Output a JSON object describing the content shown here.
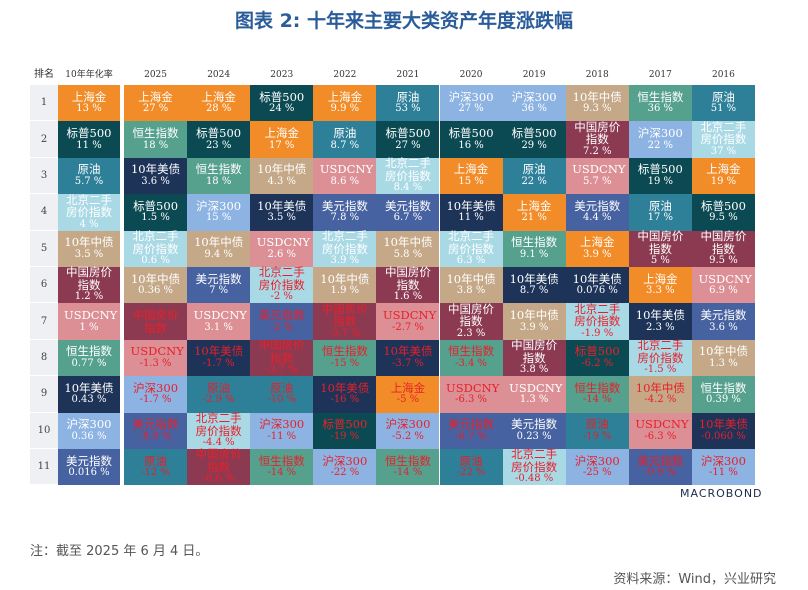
{
  "title": "图表 2:  十年来主要大类资产年度涨跌幅",
  "note": "注：截至 2025 年 6 月 4 日。",
  "source": "资料来源：Wind，兴业研究",
  "logo": "MACROBOND",
  "chart_data": {
    "type": "table",
    "rank_header": "排名",
    "ranks": [
      "1",
      "2",
      "3",
      "4",
      "5",
      "6",
      "7",
      "8",
      "9",
      "10",
      "11"
    ],
    "colors": {
      "上海金": "#f28c28",
      "标普500": "#0b4a52",
      "原油": "#2e7f98",
      "恒生指数": "#56a18d",
      "10年美债": "#1d3358",
      "沪深300": "#8db3e2",
      "10年中债": "#c4a887",
      "USDCNY": "#dc9096",
      "北京二手房价指数": "#aad9e6",
      "美元指数": "#4762a0",
      "中国房价指数": "#8b3a52"
    },
    "negative_text_color": "#e8202a",
    "columns": [
      {
        "header": "10年年化率",
        "cells": [
          {
            "asset": "上海金",
            "value": "13 %"
          },
          {
            "asset": "标普500",
            "value": "11 %"
          },
          {
            "asset": "原油",
            "value": "5.7 %"
          },
          {
            "asset": "北京二手房价指数",
            "value": "4 %"
          },
          {
            "asset": "10年中债",
            "value": "3.5 %"
          },
          {
            "asset": "中国房价指数",
            "value": "1.2 %"
          },
          {
            "asset": "USDCNY",
            "value": "1 %"
          },
          {
            "asset": "恒生指数",
            "value": "0.77 %"
          },
          {
            "asset": "10年美债",
            "value": "0.43 %"
          },
          {
            "asset": "沪深300",
            "value": "0.36 %"
          },
          {
            "asset": "美元指数",
            "value": "0.016 %"
          }
        ]
      },
      {
        "header": "2025",
        "cells": [
          {
            "asset": "上海金",
            "value": "27 %"
          },
          {
            "asset": "恒生指数",
            "value": "18 %"
          },
          {
            "asset": "10年美债",
            "value": "3.6 %"
          },
          {
            "asset": "标普500",
            "value": "1.5 %"
          },
          {
            "asset": "北京二手房价指数",
            "value": "0.6 %"
          },
          {
            "asset": "10年中债",
            "value": "0.36 %"
          },
          {
            "asset": "中国房价指数",
            "value": "",
            "negative": true
          },
          {
            "asset": "USDCNY",
            "value": "-1.3 %"
          },
          {
            "asset": "沪深300",
            "value": "-1.7 %"
          },
          {
            "asset": "美元指数",
            "value": "-8.9 %"
          },
          {
            "asset": "原油",
            "value": "-12 %"
          }
        ]
      },
      {
        "header": "2024",
        "cells": [
          {
            "asset": "上海金",
            "value": "28 %"
          },
          {
            "asset": "标普500",
            "value": "23 %"
          },
          {
            "asset": "恒生指数",
            "value": "18 %"
          },
          {
            "asset": "沪深300",
            "value": "15 %"
          },
          {
            "asset": "10年中债",
            "value": "9.4 %"
          },
          {
            "asset": "美元指数",
            "value": "7 %"
          },
          {
            "asset": "USDCNY",
            "value": "3.1 %"
          },
          {
            "asset": "10年美债",
            "value": "-1.7 %"
          },
          {
            "asset": "原油",
            "value": "-2.9 %"
          },
          {
            "asset": "北京二手房价指数",
            "value": "-4.4 %"
          },
          {
            "asset": "中国房价指数",
            "value": "-8.6 %"
          }
        ]
      },
      {
        "header": "2023",
        "cells": [
          {
            "asset": "标普500",
            "value": "24 %"
          },
          {
            "asset": "上海金",
            "value": "17 %"
          },
          {
            "asset": "10年中债",
            "value": "4.3 %"
          },
          {
            "asset": "10年美债",
            "value": "3.5 %"
          },
          {
            "asset": "USDCNY",
            "value": "2.6 %"
          },
          {
            "asset": "北京二手房价指数",
            "value": "-2 %"
          },
          {
            "asset": "美元指数",
            "value": "-2 %"
          },
          {
            "asset": "中国房价指数",
            "value": "-3.7 %"
          },
          {
            "asset": "原油",
            "value": "-10 %"
          },
          {
            "asset": "沪深300",
            "value": "-11 %"
          },
          {
            "asset": "恒生指数",
            "value": "-14 %"
          }
        ]
      },
      {
        "header": "2022",
        "cells": [
          {
            "asset": "上海金",
            "value": "9.9 %"
          },
          {
            "asset": "原油",
            "value": "8.7 %"
          },
          {
            "asset": "USDCNY",
            "value": "8.6 %"
          },
          {
            "asset": "美元指数",
            "value": "7.8 %"
          },
          {
            "asset": "北京二手房价指数",
            "value": "3.9 %"
          },
          {
            "asset": "10年中债",
            "value": "1.9 %"
          },
          {
            "asset": "中国房价指数",
            "value": "-3.7 %"
          },
          {
            "asset": "恒生指数",
            "value": "-15 %"
          },
          {
            "asset": "10年美债",
            "value": "-16 %"
          },
          {
            "asset": "标普500",
            "value": "-19 %"
          },
          {
            "asset": "沪深300",
            "value": "-22 %"
          }
        ]
      },
      {
        "header": "2021",
        "cells": [
          {
            "asset": "原油",
            "value": "53 %"
          },
          {
            "asset": "标普500",
            "value": "27 %"
          },
          {
            "asset": "北京二手房价指数",
            "value": "8.4 %"
          },
          {
            "asset": "美元指数",
            "value": "6.7 %"
          },
          {
            "asset": "10年中债",
            "value": "5.8 %"
          },
          {
            "asset": "中国房价指数",
            "value": "1.6 %"
          },
          {
            "asset": "USDCNY",
            "value": "-2.7 %"
          },
          {
            "asset": "10年美债",
            "value": "-3.7 %"
          },
          {
            "asset": "上海金",
            "value": "-5 %"
          },
          {
            "asset": "沪深300",
            "value": "-5.2 %"
          },
          {
            "asset": "恒生指数",
            "value": "-14 %"
          }
        ]
      },
      {
        "header": "2020",
        "cells": [
          {
            "asset": "沪深300",
            "value": "27 %"
          },
          {
            "asset": "标普500",
            "value": "16 %"
          },
          {
            "asset": "上海金",
            "value": "15 %"
          },
          {
            "asset": "10年美债",
            "value": "11 %"
          },
          {
            "asset": "北京二手房价指数",
            "value": "6.3 %"
          },
          {
            "asset": "10年中债",
            "value": "3.8 %"
          },
          {
            "asset": "中国房价指数",
            "value": "2.3 %"
          },
          {
            "asset": "恒生指数",
            "value": "-3.4 %"
          },
          {
            "asset": "USDCNY",
            "value": "-6.3 %"
          },
          {
            "asset": "美元指数",
            "value": "-6.7 %"
          },
          {
            "asset": "原油",
            "value": "-22 %"
          }
        ]
      },
      {
        "header": "2019",
        "cells": [
          {
            "asset": "沪深300",
            "value": "36 %"
          },
          {
            "asset": "标普500",
            "value": "29 %"
          },
          {
            "asset": "原油",
            "value": "22 %"
          },
          {
            "asset": "上海金",
            "value": "21 %"
          },
          {
            "asset": "恒生指数",
            "value": "9.1 %"
          },
          {
            "asset": "10年美债",
            "value": "8.7 %"
          },
          {
            "asset": "10年中债",
            "value": "3.9 %"
          },
          {
            "asset": "中国房价指数",
            "value": "3.8 %"
          },
          {
            "asset": "USDCNY",
            "value": "1.3 %"
          },
          {
            "asset": "美元指数",
            "value": "0.23 %"
          },
          {
            "asset": "北京二手房价指数",
            "value": "-0.48 %"
          }
        ]
      },
      {
        "header": "2018",
        "cells": [
          {
            "asset": "10年中债",
            "value": "9.3 %"
          },
          {
            "asset": "中国房价指数",
            "value": "7.2 %"
          },
          {
            "asset": "USDCNY",
            "value": "5.7 %"
          },
          {
            "asset": "美元指数",
            "value": "4.4 %"
          },
          {
            "asset": "上海金",
            "value": "3.9 %"
          },
          {
            "asset": "10年美债",
            "value": "0.076 %"
          },
          {
            "asset": "北京二手房价指数",
            "value": "-1.9 %"
          },
          {
            "asset": "标普500",
            "value": "-6.2 %"
          },
          {
            "asset": "恒生指数",
            "value": "-14 %"
          },
          {
            "asset": "原油",
            "value": "-19 %"
          },
          {
            "asset": "沪深300",
            "value": "-25 %"
          }
        ]
      },
      {
        "header": "2017",
        "cells": [
          {
            "asset": "恒生指数",
            "value": "36 %"
          },
          {
            "asset": "沪深300",
            "value": "22 %"
          },
          {
            "asset": "标普500",
            "value": "19 %"
          },
          {
            "asset": "原油",
            "value": "17 %"
          },
          {
            "asset": "中国房价指数",
            "value": "5 %"
          },
          {
            "asset": "上海金",
            "value": "3.3 %"
          },
          {
            "asset": "10年美债",
            "value": "2.3 %"
          },
          {
            "asset": "北京二手房价指数",
            "value": "-1.5 %"
          },
          {
            "asset": "10年中债",
            "value": "-4.2 %"
          },
          {
            "asset": "USDCNY",
            "value": "-6.3 %"
          },
          {
            "asset": "美元指数",
            "value": "-9.9 %"
          }
        ]
      },
      {
        "header": "2016",
        "cells": [
          {
            "asset": "原油",
            "value": "51 %"
          },
          {
            "asset": "北京二手房价指数",
            "value": "37 %"
          },
          {
            "asset": "上海金",
            "value": "19 %"
          },
          {
            "asset": "标普500",
            "value": "9.5 %"
          },
          {
            "asset": "中国房价指数",
            "value": "9.5 %"
          },
          {
            "asset": "USDCNY",
            "value": "6.9 %"
          },
          {
            "asset": "美元指数",
            "value": "3.6 %"
          },
          {
            "asset": "10年中债",
            "value": "1.3 %"
          },
          {
            "asset": "恒生指数",
            "value": "0.39 %"
          },
          {
            "asset": "10年美债",
            "value": "-0.060 %"
          },
          {
            "asset": "沪深300",
            "value": "-11 %"
          }
        ]
      }
    ]
  }
}
